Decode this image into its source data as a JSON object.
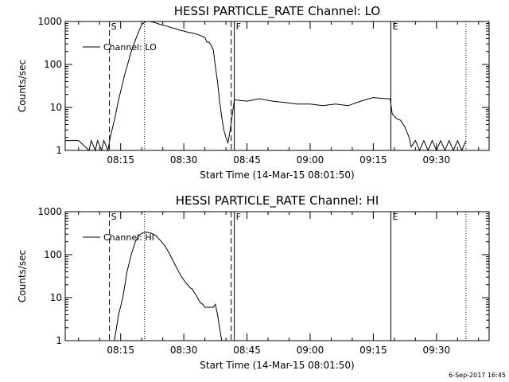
{
  "chart_data": [
    {
      "type": "line",
      "title": "HESSI PARTICLE_RATE Channel: LO",
      "xlabel": "Start Time (14-Mar-15 08:01:50)",
      "ylabel": "Counts/sec",
      "yscale": "log",
      "ylim": [
        1,
        1000
      ],
      "xlim": [
        "08:01:50",
        "09:42:30"
      ],
      "x_ticks": [
        "08:15",
        "08:30",
        "08:45",
        "09:00",
        "09:15",
        "09:30"
      ],
      "y_ticks": [
        "1",
        "10",
        "100",
        "1000"
      ],
      "legend": {
        "label": "Channel: LO",
        "position": "top-left"
      },
      "markers": [
        {
          "label": "S",
          "time": "08:12:20",
          "style": "dashed"
        },
        {
          "label": "",
          "time": "08:20:40",
          "style": "dotted"
        },
        {
          "label": "",
          "time": "08:41:15",
          "style": "dashed"
        },
        {
          "label": "F",
          "time": "08:42:00",
          "style": "solid"
        },
        {
          "label": "E",
          "time": "09:19:10",
          "style": "solid"
        },
        {
          "label": "",
          "time": "09:37:00",
          "style": "dotted"
        }
      ],
      "series": [
        {
          "name": "Channel: LO",
          "x": [
            "08:01:50",
            "08:05:00",
            "08:07:30",
            "08:08:00",
            "08:09:00",
            "08:09:30",
            "08:10:30",
            "08:11:00",
            "08:12:00",
            "08:12:30",
            "08:13:30",
            "08:14:30",
            "08:16:00",
            "08:17:30",
            "08:19:00",
            "08:20:00",
            "08:20:40",
            "08:21:00",
            "08:22:00",
            "08:23:00",
            "08:24:00",
            "08:25:00",
            "08:26:00",
            "08:27:00",
            "08:28:00",
            "08:29:00",
            "08:30:00",
            "08:31:00",
            "08:32:00",
            "08:33:00",
            "08:34:00",
            "08:35:00",
            "08:35:30",
            "08:36:00",
            "08:36:30",
            "08:37:00",
            "08:37:30",
            "08:38:00",
            "08:38:30",
            "08:39:00",
            "08:39:30",
            "08:40:00",
            "08:40:30",
            "08:41:00",
            "08:42:00",
            "08:45:00",
            "08:48:00",
            "08:51:00",
            "08:54:00",
            "08:57:00",
            "09:00:00",
            "09:03:00",
            "09:06:00",
            "09:09:00",
            "09:12:00",
            "09:15:00",
            "09:18:00",
            "09:19:00",
            "09:19:30",
            "09:20:30",
            "09:21:30",
            "09:22:30",
            "09:23:30",
            "09:24:00",
            "09:25:00",
            "09:26:00",
            "09:27:00",
            "09:28:00",
            "09:29:00",
            "09:30:00",
            "09:31:00",
            "09:32:00",
            "09:33:00",
            "09:34:00",
            "09:35:00",
            "09:36:00",
            "09:37:00"
          ],
          "y": [
            1.7,
            1.7,
            1.0,
            1.7,
            1.0,
            1.7,
            1.0,
            1.7,
            1.0,
            2.0,
            5.0,
            15,
            60,
            200,
            500,
            850,
            950,
            1000,
            1000,
            950,
            880,
            820,
            780,
            720,
            680,
            630,
            600,
            560,
            540,
            510,
            470,
            420,
            330,
            330,
            280,
            220,
            90,
            40,
            14,
            6,
            3,
            2,
            1.5,
            3,
            15,
            14,
            16,
            14,
            13,
            12,
            12,
            11,
            12,
            11,
            14,
            17,
            16,
            16,
            7,
            5.5,
            5,
            3.5,
            2,
            1.2,
            1.7,
            1,
            1.7,
            1,
            1.7,
            1,
            1.7,
            1,
            1.7,
            1,
            1.7,
            1,
            1.7
          ]
        }
      ]
    },
    {
      "type": "line",
      "title": "HESSI PARTICLE_RATE Channel: HI",
      "xlabel": "Start Time (14-Mar-15 08:01:50)",
      "ylabel": "Counts/sec",
      "yscale": "log",
      "ylim": [
        1,
        1000
      ],
      "xlim": [
        "08:01:50",
        "09:42:30"
      ],
      "x_ticks": [
        "08:15",
        "08:30",
        "08:45",
        "09:00",
        "09:15",
        "09:30"
      ],
      "y_ticks": [
        "1",
        "10",
        "100",
        "1000"
      ],
      "legend": {
        "label": "Channel: HI",
        "position": "top-left"
      },
      "markers": [
        {
          "label": "S",
          "time": "08:12:20",
          "style": "dashed"
        },
        {
          "label": "",
          "time": "08:20:40",
          "style": "dotted"
        },
        {
          "label": "",
          "time": "08:41:15",
          "style": "dashed"
        },
        {
          "label": "F",
          "time": "08:42:00",
          "style": "solid"
        },
        {
          "label": "E",
          "time": "09:19:10",
          "style": "solid"
        },
        {
          "label": "",
          "time": "09:37:00",
          "style": "dotted"
        }
      ],
      "series": [
        {
          "name": "Channel: HI",
          "x": [
            "08:13:30",
            "08:14:30",
            "08:15:30",
            "08:16:30",
            "08:17:30",
            "08:18:30",
            "08:19:30",
            "08:20:30",
            "08:21:30",
            "08:22:30",
            "08:23:30",
            "08:24:30",
            "08:25:30",
            "08:26:30",
            "08:27:30",
            "08:28:30",
            "08:29:30",
            "08:30:30",
            "08:31:30",
            "08:32:00",
            "08:32:30",
            "08:33:00",
            "08:33:30",
            "08:34:00",
            "08:34:30",
            "08:35:00",
            "08:35:30",
            "08:36:00",
            "08:36:30",
            "08:37:00",
            "08:37:30",
            "08:38:00",
            "08:38:30",
            "08:39:00"
          ],
          "y": [
            1,
            4,
            10,
            40,
            100,
            200,
            290,
            330,
            330,
            310,
            270,
            210,
            160,
            110,
            70,
            45,
            30,
            22,
            17,
            16,
            13,
            11,
            9,
            7.5,
            7,
            6,
            6,
            6,
            6,
            6,
            7,
            4,
            2,
            1
          ]
        }
      ]
    }
  ],
  "footer_date": "6-Sep-2017 16:45"
}
